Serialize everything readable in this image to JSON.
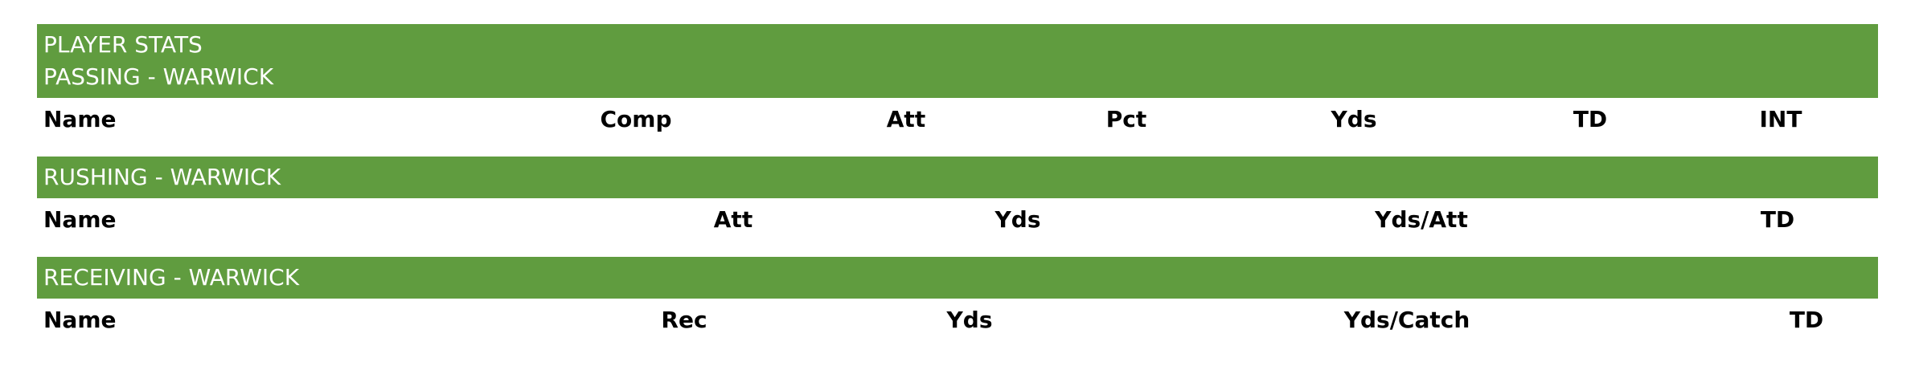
{
  "title": "PLAYER STATS",
  "passing": {
    "heading": "PASSING - WARWICK",
    "columns": [
      "Name",
      "Comp",
      "Att",
      "Pct",
      "Yds",
      "TD",
      "INT"
    ]
  },
  "rushing": {
    "heading": "RUSHING - WARWICK",
    "columns": [
      "Name",
      "Att",
      "Yds",
      "Yds/Att",
      "TD"
    ]
  },
  "receiving": {
    "heading": "RECEIVING - WARWICK",
    "columns": [
      "Name",
      "Rec",
      "Yds",
      "Yds/Catch",
      "TD"
    ]
  },
  "colors": {
    "header_band": "#609c3f",
    "header_text": "#ffffff",
    "column_text": "#000000"
  }
}
